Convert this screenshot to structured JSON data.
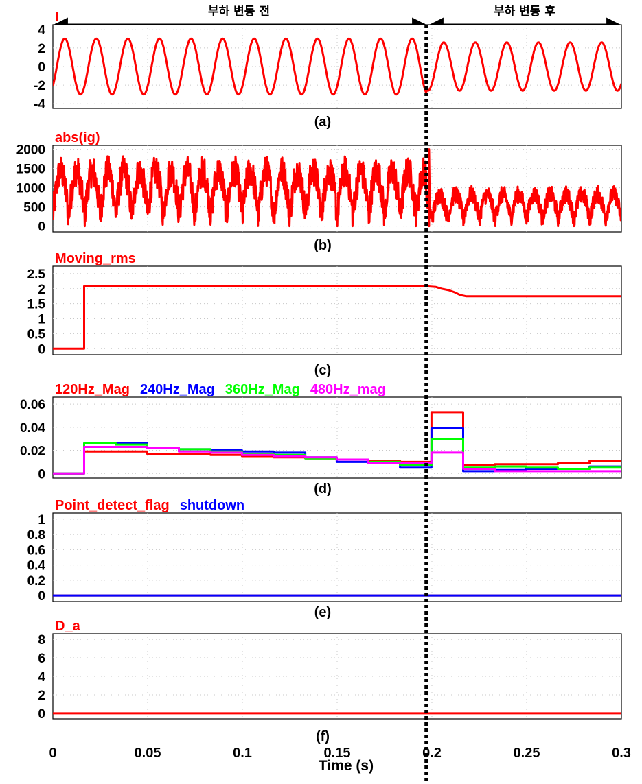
{
  "annotations": {
    "before": "부하 변동 전",
    "after": "부하 변동 후"
  },
  "event_time": 0.197,
  "x_axis": {
    "label": "Time (s)",
    "range": [
      0,
      0.3
    ],
    "ticks": [
      0,
      0.05,
      0.1,
      0.15,
      0.2,
      0.25,
      0.3
    ],
    "tick_labels": [
      "0",
      "0.05",
      "0.1",
      "0.15",
      "0.2",
      "0.25",
      "0.3"
    ]
  },
  "chart_data": [
    {
      "id": "a",
      "type": "line",
      "caption": "(a)",
      "titles": [
        {
          "text": "I",
          "color": "#ff0000"
        }
      ],
      "ylim": [
        -4.5,
        4.5
      ],
      "yticks": [
        4,
        2,
        0,
        -2,
        -4
      ],
      "ytick_labels": [
        "4",
        "2",
        "0",
        "-2",
        "-4"
      ],
      "series": [
        {
          "color": "#ff0000",
          "segments": [
            {
              "shape": "sine",
              "t0": 0,
              "t1": 0.197,
              "amplitude": 3.0,
              "frequency_hz": 60,
              "phase_deg": -45
            },
            {
              "shape": "sine",
              "t0": 0.197,
              "t1": 0.3,
              "amplitude": 2.6,
              "frequency_hz": 60,
              "phase_deg": -45
            }
          ]
        }
      ]
    },
    {
      "id": "b",
      "type": "line",
      "caption": "(b)",
      "titles": [
        {
          "text": "abs(ig)",
          "color": "#ff0000"
        }
      ],
      "ylim": [
        -150,
        2100
      ],
      "yticks": [
        2000,
        1500,
        1000,
        500,
        0
      ],
      "ytick_labels": [
        "2000",
        "1500",
        "1000",
        "500",
        "0"
      ],
      "series": [
        {
          "color": "#ff0000",
          "segments": [
            {
              "shape": "rectified_noise",
              "t0": 0,
              "t1": 0.197,
              "mean": 850,
              "amplitude": 900,
              "frequency_hz": 120
            },
            {
              "shape": "rectified_noise",
              "t0": 0.197,
              "t1": 0.3,
              "mean": 500,
              "amplitude": 500,
              "frequency_hz": 120
            }
          ],
          "spike": {
            "t": 0.1985,
            "value": 2000
          }
        }
      ]
    },
    {
      "id": "c",
      "type": "line",
      "caption": "(c)",
      "titles": [
        {
          "text": "Moving_rms",
          "color": "#ff0000"
        }
      ],
      "ylim": [
        -0.2,
        2.75
      ],
      "yticks": [
        2.5,
        2,
        1.5,
        1,
        0.5,
        0
      ],
      "ytick_labels": [
        "2.5",
        "2",
        "1.5",
        "1",
        "0.5",
        "0"
      ],
      "series": [
        {
          "color": "#ff0000",
          "points": [
            [
              0,
              0
            ],
            [
              0.0165,
              0
            ],
            [
              0.0165,
              2.08
            ],
            [
              0.197,
              2.08
            ],
            [
              0.202,
              2.06
            ],
            [
              0.205,
              2.0
            ],
            [
              0.209,
              1.95
            ],
            [
              0.212,
              1.88
            ],
            [
              0.215,
              1.79
            ],
            [
              0.218,
              1.75
            ],
            [
              0.3,
              1.75
            ]
          ]
        }
      ]
    },
    {
      "id": "d",
      "type": "line",
      "caption": "(d)",
      "titles": [
        {
          "text": "120Hz_Mag",
          "color": "#ff0000"
        },
        {
          "text": "240Hz_Mag",
          "color": "#0000ff"
        },
        {
          "text": "360Hz_Mag",
          "color": "#00ff00"
        },
        {
          "text": "480Hz_mag",
          "color": "#ff00ff"
        }
      ],
      "ylim": [
        -0.004,
        0.066
      ],
      "yticks": [
        0.06,
        0.04,
        0.02,
        0
      ],
      "ytick_labels": [
        "0.06",
        "0.04",
        "0.02",
        "0"
      ],
      "step_edges": [
        0,
        0.0165,
        0.0332,
        0.0498,
        0.0665,
        0.0832,
        0.0998,
        0.1165,
        0.1332,
        0.1498,
        0.1665,
        0.1832,
        0.1998,
        0.2165,
        0.2332,
        0.2498,
        0.2665,
        0.2832,
        0.3
      ],
      "series": [
        {
          "name": "120Hz_Mag",
          "color": "#ff0000",
          "values": [
            0,
            0.019,
            0.019,
            0.017,
            0.017,
            0.016,
            0.015,
            0.014,
            0.013,
            0.012,
            0.011,
            0.01,
            0.053,
            0.007,
            0.008,
            0.008,
            0.009,
            0.011
          ]
        },
        {
          "name": "240Hz_Mag",
          "color": "#0000ff",
          "values": [
            0,
            0.026,
            0.026,
            0.022,
            0.021,
            0.02,
            0.019,
            0.018,
            0.014,
            0.01,
            0.009,
            0.005,
            0.039,
            0.002,
            0.003,
            0.004,
            0.004,
            0.006
          ]
        },
        {
          "name": "360Hz_Mag",
          "color": "#00ff00",
          "values": [
            0,
            0.026,
            0.025,
            0.022,
            0.021,
            0.019,
            0.017,
            0.016,
            0.013,
            0.012,
            0.01,
            0.007,
            0.03,
            0.005,
            0.006,
            0.005,
            0.004,
            0.005
          ]
        },
        {
          "name": "480Hz_mag",
          "color": "#ff00ff",
          "values": [
            0,
            0.023,
            0.023,
            0.022,
            0.019,
            0.018,
            0.016,
            0.015,
            0.014,
            0.012,
            0.009,
            0.009,
            0.018,
            0.004,
            0.002,
            0.002,
            0.002,
            0.002
          ]
        }
      ]
    },
    {
      "id": "e",
      "type": "line",
      "caption": "(e)",
      "titles": [
        {
          "text": "Point_detect_flag",
          "color": "#ff0000"
        },
        {
          "text": "shutdown",
          "color": "#0000ff"
        }
      ],
      "ylim": [
        -0.08,
        1.08
      ],
      "yticks": [
        1,
        0.8,
        0.6,
        0.4,
        0.2,
        0
      ],
      "ytick_labels": [
        "1",
        "0.8",
        "0.6",
        "0.4",
        "0.2",
        "0"
      ],
      "series": [
        {
          "name": "Point_detect_flag",
          "color": "#ff0000",
          "points": [
            [
              0,
              0
            ],
            [
              0.3,
              0
            ]
          ]
        },
        {
          "name": "shutdown",
          "color": "#0000ff",
          "points": [
            [
              0,
              0
            ],
            [
              0.3,
              0
            ]
          ]
        }
      ]
    },
    {
      "id": "f",
      "type": "line",
      "caption": "(f)",
      "titles": [
        {
          "text": "D_a",
          "color": "#ff0000"
        }
      ],
      "ylim": [
        -0.6,
        8.6
      ],
      "yticks": [
        8,
        6,
        4,
        2,
        0
      ],
      "ytick_labels": [
        "8",
        "6",
        "4",
        "2",
        "0"
      ],
      "series": [
        {
          "name": "D_a",
          "color": "#ff0000",
          "points": [
            [
              0,
              0
            ],
            [
              0.3,
              0
            ]
          ]
        }
      ]
    }
  ]
}
